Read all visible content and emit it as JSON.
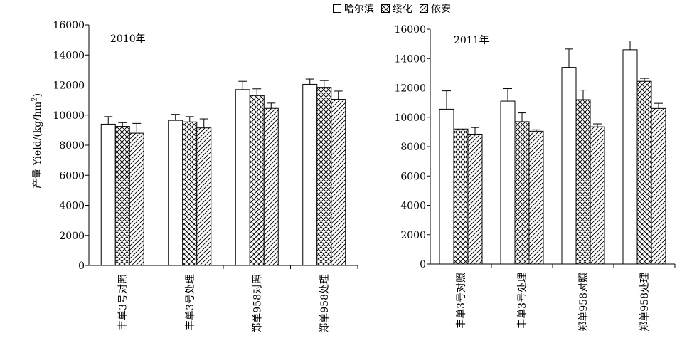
{
  "legend": {
    "items": [
      {
        "label": "哈尔滨",
        "pattern": "blank"
      },
      {
        "label": "绥化",
        "pattern": "crosshatch"
      },
      {
        "label": "依安",
        "pattern": "diagonal"
      }
    ]
  },
  "y_axis_label_main": "产量 Yield/(kg/hm",
  "y_axis_label_sup": "2",
  "y_axis_label_end": ")",
  "chart_data": [
    {
      "type": "bar",
      "title": "2010年",
      "categories": [
        "丰单3号对照",
        "丰单3号处理",
        "郑单958对照",
        "郑单958处理"
      ],
      "ylim": [
        0,
        16000
      ],
      "yticks": [
        0,
        2000,
        4000,
        6000,
        8000,
        10000,
        12000,
        14000,
        16000
      ],
      "series": [
        {
          "name": "哈尔滨",
          "values": [
            9400,
            9650,
            11700,
            12050
          ],
          "errors": [
            500,
            400,
            550,
            350
          ]
        },
        {
          "name": "绥化",
          "values": [
            9250,
            9550,
            11300,
            11850
          ],
          "errors": [
            250,
            350,
            450,
            450
          ]
        },
        {
          "name": "依安",
          "values": [
            8800,
            9150,
            10450,
            11050
          ],
          "errors": [
            650,
            600,
            350,
            550
          ]
        }
      ]
    },
    {
      "type": "bar",
      "title": "2011年",
      "categories": [
        "丰单3号对照",
        "丰单3号处理",
        "郑单958对照",
        "郑单958处理"
      ],
      "ylim": [
        0,
        16000
      ],
      "yticks": [
        0,
        2000,
        4000,
        6000,
        8000,
        10000,
        12000,
        14000,
        16000
      ],
      "series": [
        {
          "name": "哈尔滨",
          "values": [
            10550,
            11100,
            13400,
            14600
          ],
          "errors": [
            1250,
            850,
            1250,
            600
          ]
        },
        {
          "name": "绥化",
          "values": [
            9200,
            9700,
            11200,
            12450
          ],
          "errors": [
            0,
            600,
            650,
            200
          ]
        },
        {
          "name": "依安",
          "values": [
            8850,
            9050,
            9350,
            10600
          ],
          "errors": [
            450,
            100,
            200,
            350
          ]
        }
      ]
    }
  ]
}
